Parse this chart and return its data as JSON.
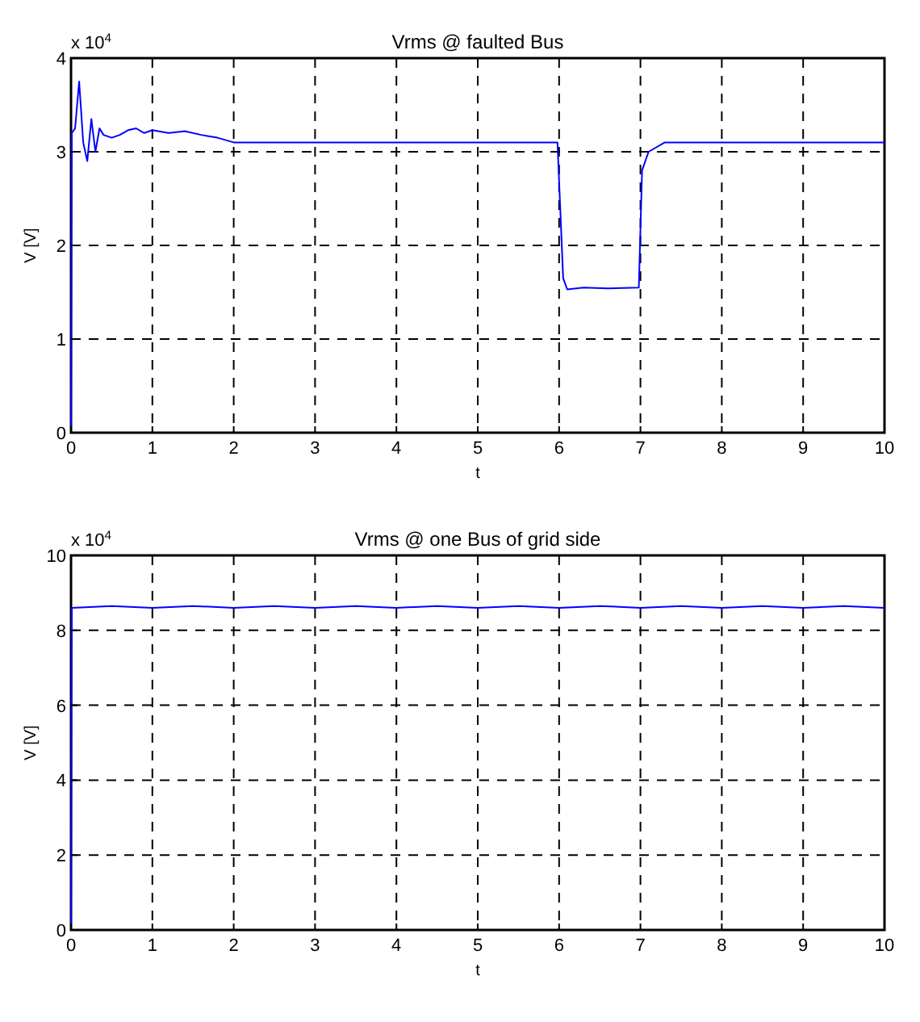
{
  "chart_data": [
    {
      "type": "line",
      "title": "Vrms @ faulted Bus",
      "xlabel": "t",
      "ylabel": "V  [V]",
      "annotations": [
        "x 10$^{4}$"
      ],
      "xlim": [
        0,
        10
      ],
      "xticks": [
        0,
        1,
        2,
        3,
        4,
        5,
        6,
        7,
        8,
        9,
        10
      ],
      "ylim": [
        0,
        4
      ],
      "yticks": [
        0,
        1,
        2,
        3,
        4
      ],
      "grid": true,
      "line_style": "solid",
      "series": [
        {
          "color": "#0000ff",
          "x": [
            0,
            0.01,
            0.05,
            0.1,
            0.15,
            0.2,
            0.25,
            0.3,
            0.35,
            0.4,
            0.5,
            0.6,
            0.7,
            0.8,
            0.9,
            1.0,
            1.2,
            1.4,
            1.6,
            1.8,
            2.0,
            2.5,
            3.0,
            3.5,
            4.0,
            4.5,
            5.0,
            5.5,
            5.98,
            6.05,
            6.1,
            6.3,
            6.6,
            6.98,
            7.02,
            7.1,
            7.3,
            7.6,
            8.0,
            8.5,
            9.0,
            9.5,
            10
          ],
          "values": [
            0,
            3.2,
            3.25,
            3.75,
            3.1,
            2.9,
            3.35,
            3.0,
            3.25,
            3.18,
            3.15,
            3.18,
            3.23,
            3.25,
            3.2,
            3.23,
            3.2,
            3.22,
            3.18,
            3.15,
            3.1,
            3.1,
            3.1,
            3.1,
            3.1,
            3.1,
            3.1,
            3.1,
            3.1,
            1.65,
            1.53,
            1.55,
            1.54,
            1.55,
            2.8,
            3.0,
            3.1,
            3.1,
            3.1,
            3.1,
            3.1,
            3.1,
            3.1
          ]
        }
      ]
    },
    {
      "type": "line",
      "title": "Vrms @ one Bus of grid side",
      "xlabel": "t",
      "ylabel": "V  [V]",
      "annotations": [
        "x 10$^{4}$"
      ],
      "xlim": [
        0,
        10
      ],
      "xticks": [
        0,
        1,
        2,
        3,
        4,
        5,
        6,
        7,
        8,
        9,
        10
      ],
      "ylim": [
        0,
        10
      ],
      "yticks": [
        0,
        2,
        4,
        6,
        8,
        10
      ],
      "grid": true,
      "line_style": "solid",
      "series": [
        {
          "color": "#0000ff",
          "x": [
            0,
            0.01,
            0.5,
            1,
            1.5,
            2,
            2.5,
            3,
            3.5,
            4,
            4.5,
            5,
            5.5,
            6,
            6.5,
            7,
            7.5,
            8,
            8.5,
            9,
            9.5,
            10
          ],
          "values": [
            0,
            8.6,
            8.65,
            8.6,
            8.65,
            8.6,
            8.65,
            8.6,
            8.65,
            8.6,
            8.65,
            8.6,
            8.65,
            8.6,
            8.65,
            8.6,
            8.65,
            8.6,
            8.65,
            8.6,
            8.65,
            8.6
          ]
        }
      ]
    }
  ]
}
